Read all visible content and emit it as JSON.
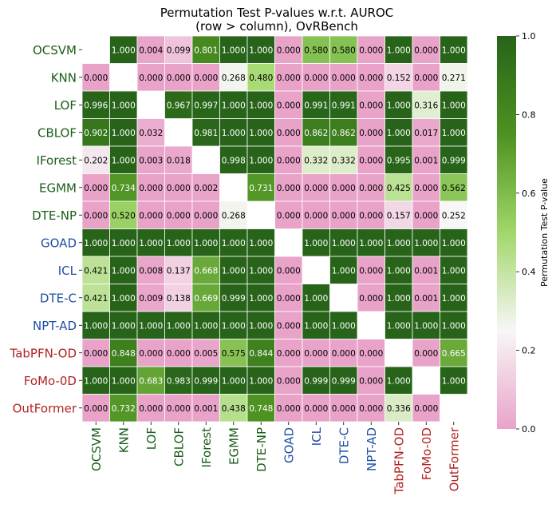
{
  "chart_data": {
    "type": "heatmap",
    "title_line1": "Permutation Test P-values w.r.t. AUROC",
    "title_line2": "(row > column), OvRBench",
    "colorbar_label": "Permutation Test P-value",
    "colorbar_ticks": [
      "0.0",
      "0.2",
      "0.4",
      "0.6",
      "0.8",
      "1.0"
    ],
    "colorbar_range": [
      0,
      1
    ],
    "row_labels": [
      "OCSVM",
      "KNN",
      "LOF",
      "CBLOF",
      "IForest",
      "EGMM",
      "DTE-NP",
      "GOAD",
      "ICL",
      "DTE-C",
      "NPT-AD",
      "TabPFN-OD",
      "FoMo-0D",
      "OutFormer"
    ],
    "col_labels": [
      "OCSVM",
      "KNN",
      "LOF",
      "CBLOF",
      "IForest",
      "EGMM",
      "DTE-NP",
      "GOAD",
      "ICL",
      "DTE-C",
      "NPT-AD",
      "TabPFN-OD",
      "FoMo-0D",
      "OutFormer"
    ],
    "label_groups": [
      "classic",
      "classic",
      "classic",
      "classic",
      "classic",
      "classic",
      "classic",
      "deep",
      "deep",
      "deep",
      "deep",
      "foundation",
      "foundation",
      "foundation"
    ],
    "group_colors": {
      "classic": "#1a5e1a",
      "deep": "#1f4fa3",
      "foundation": "#b22222"
    },
    "colormap": [
      "#e9a3c9",
      "#f7f7f7",
      "#a1d76a",
      "#4d9221",
      "#276419"
    ],
    "values": [
      [
        null,
        1.0,
        0.004,
        0.099,
        0.801,
        1.0,
        1.0,
        0.0,
        0.58,
        0.58,
        0.0,
        1.0,
        0.0,
        1.0
      ],
      [
        0.0,
        null,
        0.0,
        0.0,
        0.0,
        0.268,
        0.48,
        0.0,
        0.0,
        0.0,
        0.0,
        0.152,
        0.0,
        0.271
      ],
      [
        0.996,
        1.0,
        null,
        0.967,
        0.997,
        1.0,
        1.0,
        0.0,
        0.991,
        0.991,
        0.0,
        1.0,
        0.316,
        1.0
      ],
      [
        0.902,
        1.0,
        0.032,
        null,
        0.981,
        1.0,
        1.0,
        0.0,
        0.862,
        0.862,
        0.0,
        1.0,
        0.017,
        1.0
      ],
      [
        0.202,
        1.0,
        0.003,
        0.018,
        null,
        0.998,
        1.0,
        0.0,
        0.332,
        0.332,
        0.0,
        0.995,
        0.001,
        0.999
      ],
      [
        0.0,
        0.734,
        0.0,
        0.0,
        0.002,
        null,
        0.731,
        0.0,
        0.0,
        0.0,
        0.0,
        0.425,
        0.0,
        0.562
      ],
      [
        0.0,
        0.52,
        0.0,
        0.0,
        0.0,
        0.268,
        null,
        0.0,
        0.0,
        0.0,
        0.0,
        0.157,
        0.0,
        0.252
      ],
      [
        1.0,
        1.0,
        1.0,
        1.0,
        1.0,
        1.0,
        1.0,
        null,
        1.0,
        1.0,
        1.0,
        1.0,
        1.0,
        1.0
      ],
      [
        0.421,
        1.0,
        0.008,
        0.137,
        0.668,
        1.0,
        1.0,
        0.0,
        null,
        1.0,
        0.0,
        1.0,
        0.001,
        1.0
      ],
      [
        0.421,
        1.0,
        0.009,
        0.138,
        0.669,
        0.999,
        1.0,
        0.0,
        1.0,
        null,
        0.0,
        1.0,
        0.001,
        1.0
      ],
      [
        1.0,
        1.0,
        1.0,
        1.0,
        1.0,
        1.0,
        1.0,
        0.0,
        1.0,
        1.0,
        null,
        1.0,
        1.0,
        1.0
      ],
      [
        0.0,
        0.848,
        0.0,
        0.0,
        0.005,
        0.575,
        0.844,
        0.0,
        0.0,
        0.0,
        0.0,
        null,
        0.0,
        0.665
      ],
      [
        1.0,
        1.0,
        0.683,
        0.983,
        0.999,
        1.0,
        1.0,
        0.0,
        0.999,
        0.999,
        0.0,
        1.0,
        null,
        1.0
      ],
      [
        0.0,
        0.732,
        0.0,
        0.0,
        0.001,
        0.438,
        0.748,
        0.0,
        0.0,
        0.0,
        0.0,
        0.336,
        0.0,
        null
      ]
    ]
  }
}
